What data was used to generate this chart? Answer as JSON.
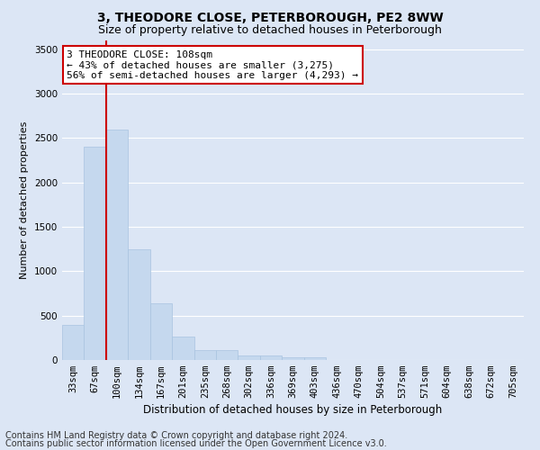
{
  "title1": "3, THEODORE CLOSE, PETERBOROUGH, PE2 8WW",
  "title2": "Size of property relative to detached houses in Peterborough",
  "xlabel": "Distribution of detached houses by size in Peterborough",
  "ylabel": "Number of detached properties",
  "categories": [
    "33sqm",
    "67sqm",
    "100sqm",
    "134sqm",
    "167sqm",
    "201sqm",
    "235sqm",
    "268sqm",
    "302sqm",
    "336sqm",
    "369sqm",
    "403sqm",
    "436sqm",
    "470sqm",
    "504sqm",
    "537sqm",
    "571sqm",
    "604sqm",
    "638sqm",
    "672sqm",
    "705sqm"
  ],
  "values": [
    400,
    2400,
    2600,
    1250,
    640,
    260,
    110,
    110,
    55,
    55,
    35,
    35,
    0,
    0,
    0,
    0,
    0,
    0,
    0,
    0,
    0
  ],
  "bar_color": "#c5d8ee",
  "bar_edgecolor": "#a8c4e0",
  "vline_x_idx": 2,
  "vline_color": "#cc0000",
  "ylim": [
    0,
    3600
  ],
  "yticks": [
    0,
    500,
    1000,
    1500,
    2000,
    2500,
    3000,
    3500
  ],
  "annotation_line1": "3 THEODORE CLOSE: 108sqm",
  "annotation_line2": "← 43% of detached houses are smaller (3,275)",
  "annotation_line3": "56% of semi-detached houses are larger (4,293) →",
  "annotation_box_edgecolor": "#cc0000",
  "annotation_box_facecolor": "#ffffff",
  "footer1": "Contains HM Land Registry data © Crown copyright and database right 2024.",
  "footer2": "Contains public sector information licensed under the Open Government Licence v3.0.",
  "background_color": "#dce6f5",
  "plot_background_color": "#dce6f5",
  "grid_color": "#ffffff",
  "title1_fontsize": 10,
  "title2_fontsize": 9,
  "xlabel_fontsize": 8.5,
  "ylabel_fontsize": 8,
  "tick_fontsize": 7.5,
  "annotation_fontsize": 8,
  "footer_fontsize": 7
}
